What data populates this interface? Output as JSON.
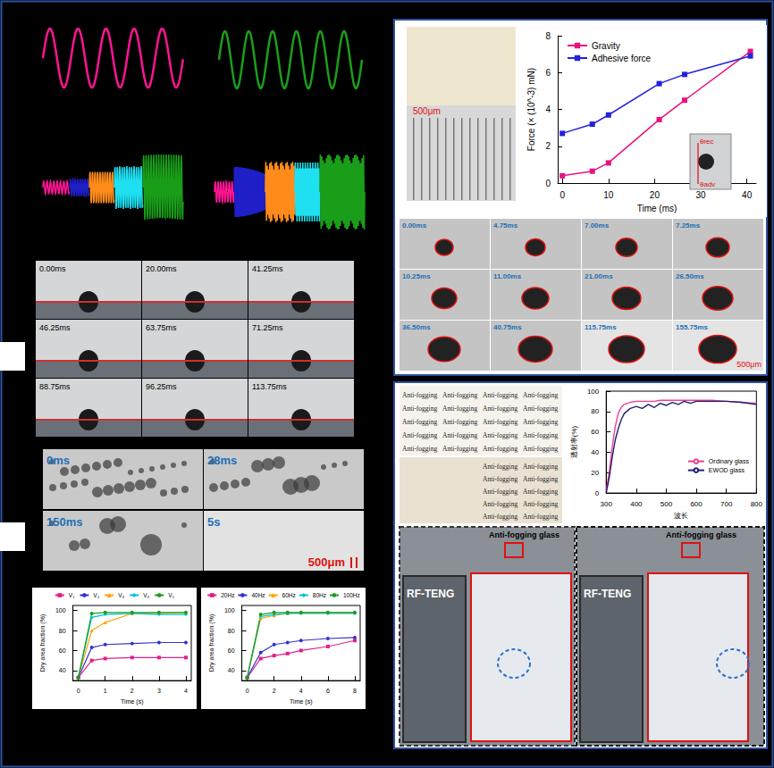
{
  "chart_data": [
    {
      "type": "line",
      "x_label": "Time (ms)",
      "y_label": "Force (× (10^-3) mN)",
      "x": [
        0,
        6.5,
        10,
        21,
        26.5,
        40.75
      ],
      "series": [
        {
          "name": "Gravity",
          "color": "#e8117f",
          "marker": "square",
          "values": [
            0.4,
            0.65,
            1.1,
            3.45,
            4.5,
            7.15
          ]
        },
        {
          "name": "Adhesive force",
          "color": "#2222dd",
          "marker": "square",
          "values": [
            2.7,
            3.2,
            3.7,
            5.4,
            5.9,
            6.9
          ]
        }
      ],
      "xlim": [
        -1,
        42
      ],
      "xticks": [
        0,
        10,
        20,
        30,
        40
      ],
      "ylim": [
        0,
        8
      ],
      "yticks": [
        0,
        2,
        4,
        6,
        8
      ],
      "legend": "upper left",
      "grid": false
    },
    {
      "type": "line",
      "x_label": "波长",
      "y_label": "透射率(%)",
      "x": [
        300,
        310,
        320,
        330,
        340,
        350,
        360,
        380,
        400,
        420,
        440,
        460,
        480,
        500,
        520,
        540,
        560,
        580,
        600,
        650,
        700,
        750,
        800
      ],
      "series": [
        {
          "name": "Ordinary glass",
          "color": "#ee3f94",
          "marker": "none",
          "values": [
            2,
            20,
            45,
            65,
            78,
            84,
            87,
            89,
            90,
            90,
            90,
            90,
            91,
            91,
            91,
            91,
            91,
            91,
            91,
            91,
            90,
            89,
            88
          ]
        },
        {
          "name": "EWOD glass",
          "color": "#1f1f70",
          "marker": "none",
          "values": [
            0,
            15,
            35,
            52,
            63,
            72,
            78,
            83,
            85,
            83,
            87,
            84,
            88,
            86,
            89,
            87,
            90,
            88,
            90,
            90,
            90,
            89,
            87
          ]
        }
      ],
      "xlim": [
        300,
        800
      ],
      "xticks": [
        300,
        400,
        500,
        600,
        700,
        800
      ],
      "ylim": [
        0,
        100
      ],
      "yticks": [
        0,
        20,
        40,
        60,
        80,
        100
      ],
      "legend": "right",
      "grid": false
    },
    {
      "type": "line",
      "x_label": "Time (s)",
      "y_label": "Dry area fraction (%)",
      "x": [
        0,
        0.5,
        1,
        2,
        3,
        4
      ],
      "series": [
        {
          "name": "V₁",
          "color": "#e0218a",
          "marker": "square",
          "values": [
            33,
            50,
            52,
            53,
            53,
            53
          ]
        },
        {
          "name": "V₂",
          "color": "#3333cc",
          "marker": "circle",
          "values": [
            33,
            63,
            66,
            67,
            68,
            68
          ]
        },
        {
          "name": "V₃",
          "color": "#ffa500",
          "marker": "triangle",
          "values": [
            33,
            80,
            88,
            97,
            97,
            98
          ]
        },
        {
          "name": "V₄",
          "color": "#00c0e0",
          "marker": "diamond",
          "values": [
            33,
            93,
            96,
            97,
            96,
            96
          ]
        },
        {
          "name": "V₅",
          "color": "#1a9e1a",
          "marker": "circle",
          "values": [
            33,
            97,
            98,
            98,
            98,
            98
          ]
        }
      ],
      "xlim": [
        -0.2,
        4.2
      ],
      "xticks": [
        0,
        1,
        2,
        3,
        4
      ],
      "ylim": [
        30,
        105
      ],
      "yticks": [
        40,
        60,
        80,
        100
      ],
      "legend": "top",
      "grid": false
    },
    {
      "type": "line",
      "x_label": "Time (s)",
      "y_label": "Dry area fraction (%)",
      "x": [
        0,
        1,
        2,
        3,
        4,
        6,
        8
      ],
      "series": [
        {
          "name": "20Hz",
          "color": "#e0218a",
          "marker": "square",
          "values": [
            33,
            52,
            55,
            57,
            60,
            64,
            70
          ]
        },
        {
          "name": "40Hz",
          "color": "#3333cc",
          "marker": "circle",
          "values": [
            33,
            58,
            66,
            68,
            70,
            72,
            73
          ]
        },
        {
          "name": "60Hz",
          "color": "#ffa500",
          "marker": "triangle",
          "values": [
            33,
            92,
            95,
            97,
            98,
            98,
            98
          ]
        },
        {
          "name": "80Hz",
          "color": "#00c0e0",
          "marker": "diamond",
          "values": [
            33,
            94,
            96,
            97,
            97,
            97,
            97
          ]
        },
        {
          "name": "100Hz",
          "color": "#1a9e1a",
          "marker": "circle",
          "values": [
            33,
            96,
            98,
            98,
            98,
            98,
            98
          ]
        }
      ],
      "xlim": [
        -0.4,
        8.4
      ],
      "xticks": [
        0,
        2,
        4,
        6,
        8
      ],
      "ylim": [
        30,
        105
      ],
      "yticks": [
        40,
        60,
        80,
        100
      ],
      "legend": "top",
      "grid": false
    }
  ],
  "photo_panels": {
    "contact_angle": {
      "timestamps": [
        "0.00ms",
        "20.00ms",
        "41.25ms",
        "46.25ms",
        "63.75ms",
        "71.25ms",
        "88.75ms",
        "96.25ms",
        "113.75ms"
      ]
    },
    "condensation": {
      "timestamps": [
        "0ms",
        "28ms",
        "150ms",
        "5s"
      ],
      "scale_bar": "500μm"
    },
    "electrode": {
      "scale_bar": "500μm"
    },
    "inset_angles": [
      "θrec",
      "θadv"
    ],
    "sliding": {
      "timestamps": [
        "0.00ms",
        "4.75ms",
        "7.00ms",
        "7.25ms",
        "10.25ms",
        "11.00ms",
        "21.00ms",
        "26.50ms",
        "36.50ms",
        "40.75ms",
        "115.75ms",
        "155.75ms"
      ],
      "scale_bar": "500μm"
    },
    "transmission_sample": {
      "text": "Anti-fogging"
    },
    "field_test": {
      "device": "RF-TENG",
      "glass": "Anti-fogging glass"
    }
  }
}
